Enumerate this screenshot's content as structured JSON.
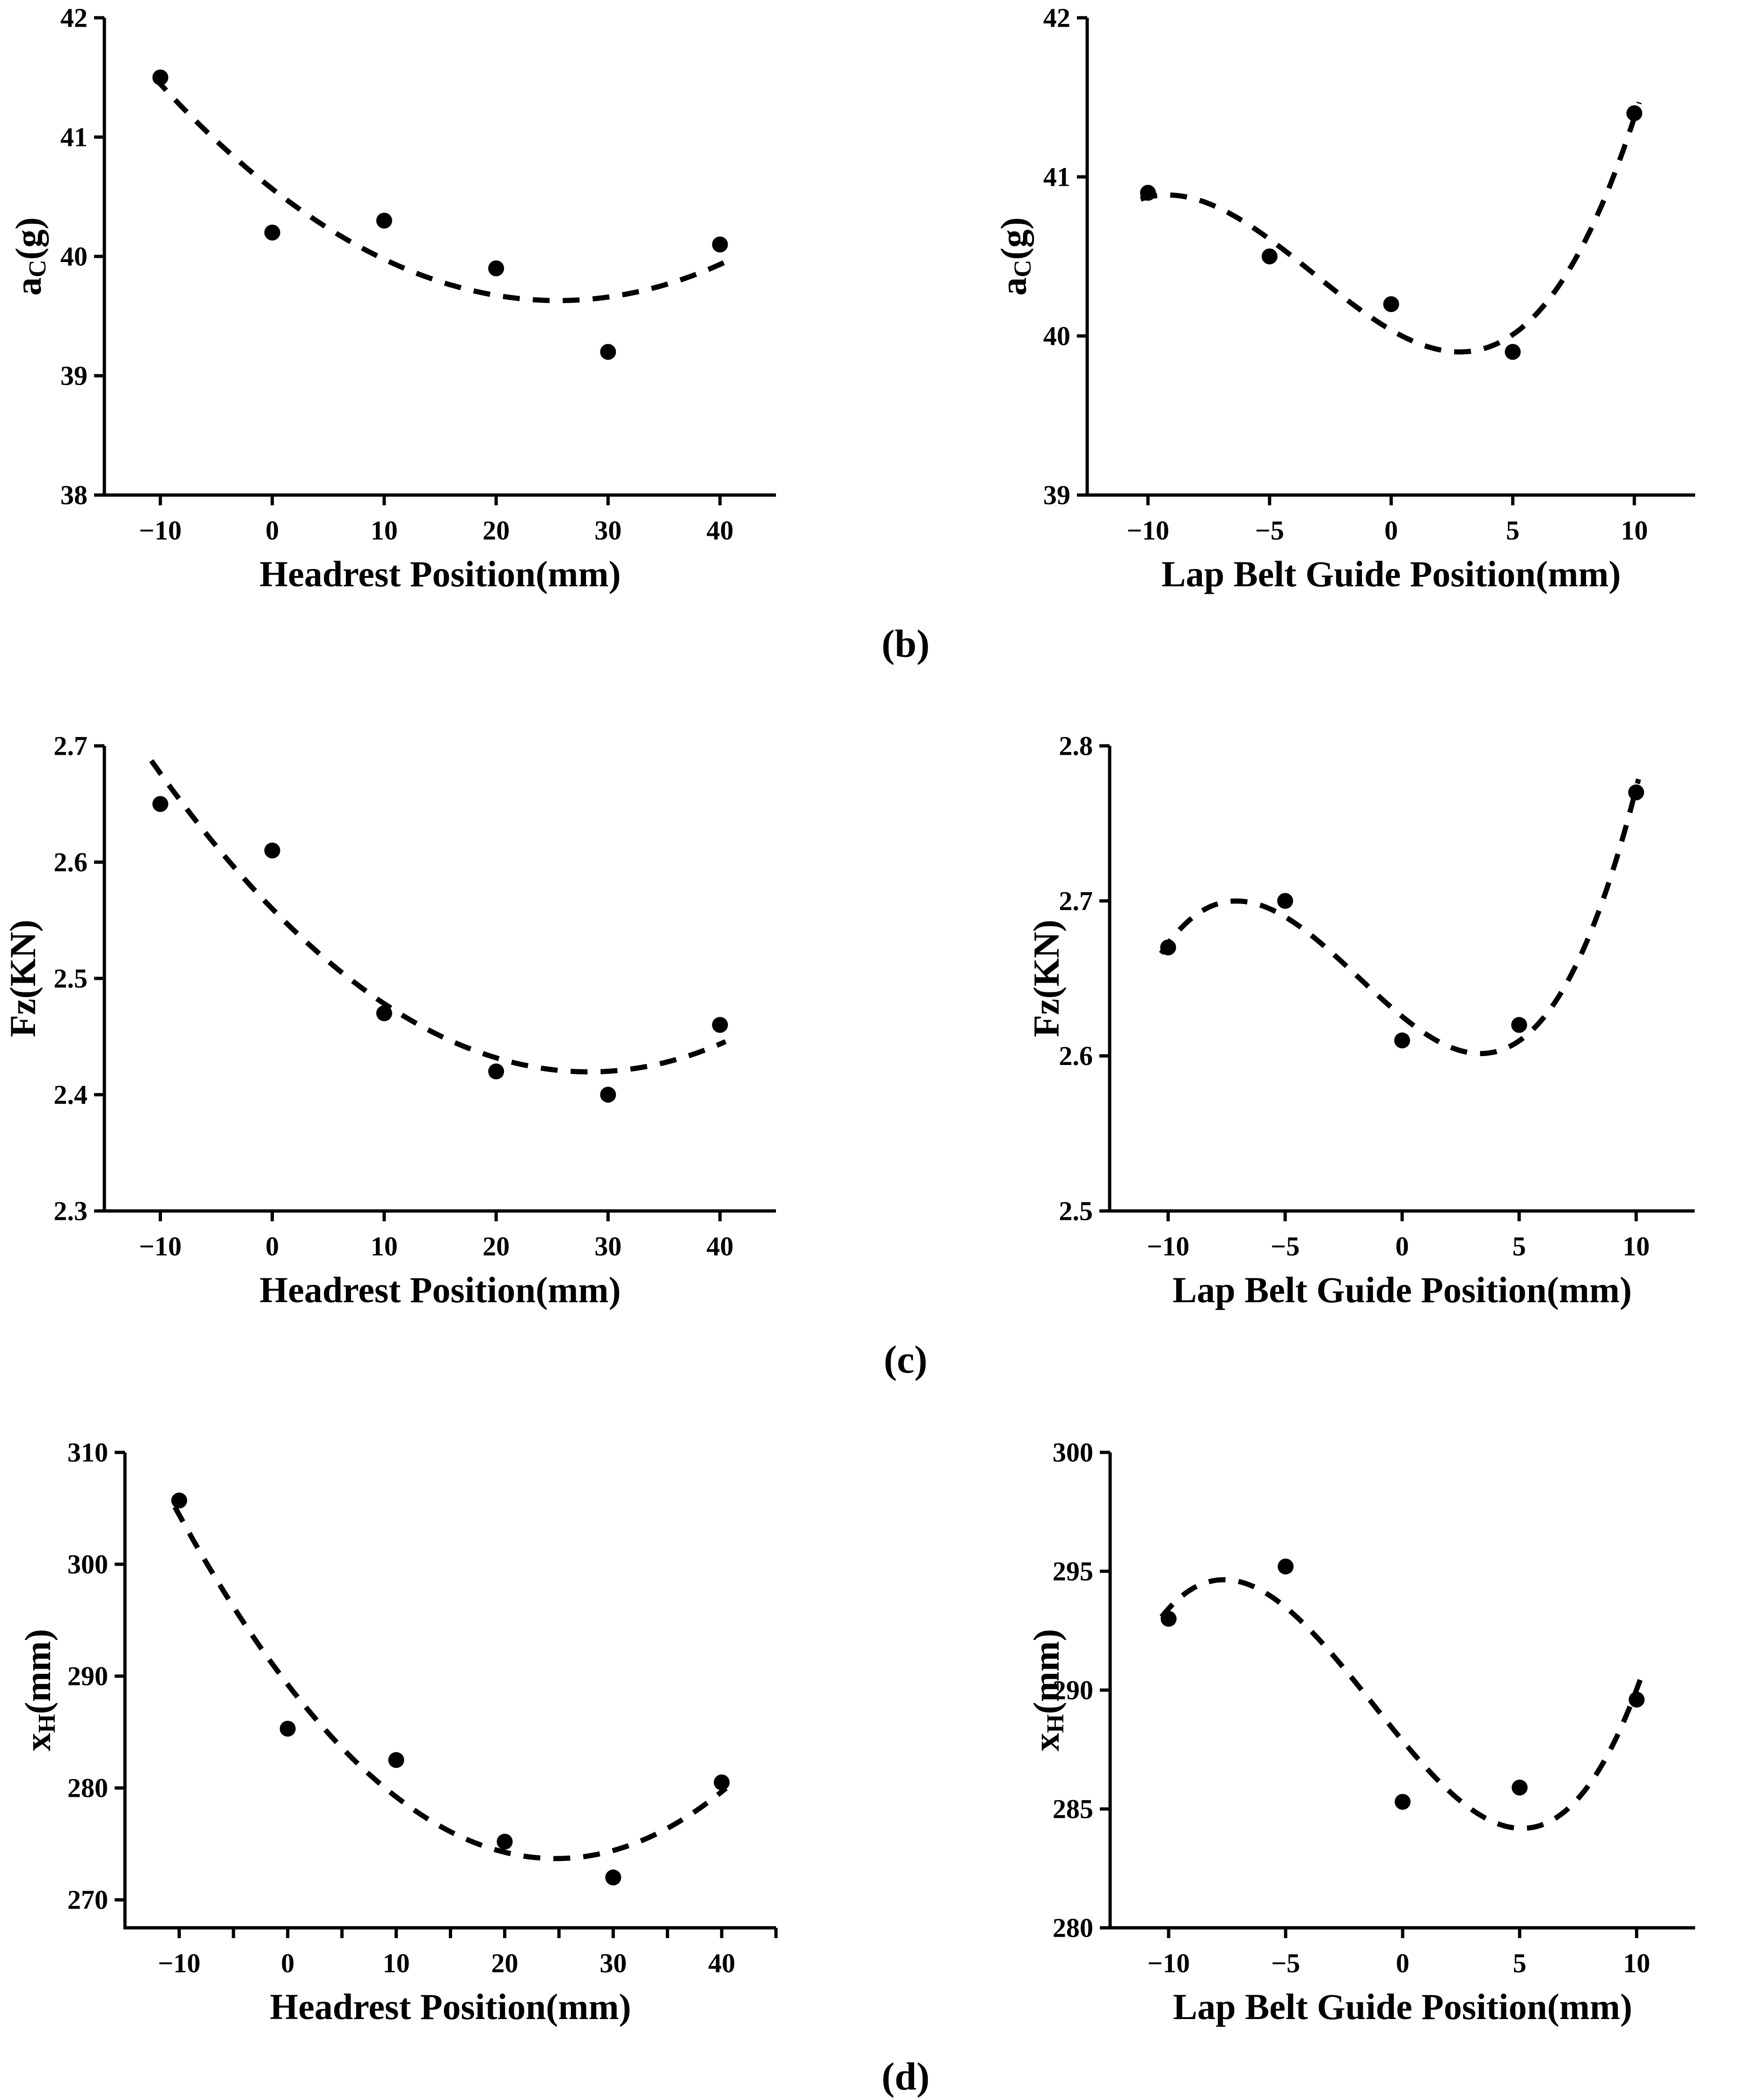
{
  "figure": {
    "background_color": "#ffffff",
    "ink_color": "#000000",
    "panel_labels": [
      "(b)",
      "(c)",
      "(d)"
    ]
  },
  "chart_data": [
    {
      "id": "ac-headrest",
      "panel": "b",
      "type": "scatter",
      "marker": "filled-circle",
      "fit_line_style": "dashed",
      "grid": false,
      "legend": "none",
      "xlabel": "Headrest Position(mm)",
      "ylabel": {
        "pre": "a",
        "sub": "C",
        "post": "(g)"
      },
      "xlim": [
        -15,
        45
      ],
      "ylim": [
        38,
        42
      ],
      "x_ticks": [
        -10,
        0,
        10,
        20,
        30,
        40
      ],
      "x_minor_ticks": [],
      "y_ticks": [
        "38",
        "39",
        "40",
        "41",
        "42"
      ],
      "x": [
        -10,
        0,
        10,
        20,
        30,
        40
      ],
      "y": [
        41.5,
        40.2,
        40.3,
        39.9,
        39.2,
        40.1
      ],
      "fit": {
        "type": "polynomial",
        "coeffs": [
          40.56636,
          -0.07344,
          0.00144
        ],
        "x_range": [
          -10.5,
          40.5
        ]
      }
    },
    {
      "id": "ac-lapbelt",
      "panel": "b",
      "type": "scatter",
      "marker": "filled-circle",
      "fit_line_style": "dashed",
      "grid": false,
      "legend": "none",
      "xlabel": "Lap Belt Guide Position(mm)",
      "ylabel": {
        "pre": "a",
        "sub": "C",
        "post": "(g)"
      },
      "xlim": [
        -12.5,
        12.5
      ],
      "ylim": [
        39,
        42
      ],
      "x_ticks": [
        -10,
        -5,
        0,
        5,
        10
      ],
      "x_minor_ticks": [],
      "y_ticks": [
        "39",
        "40",
        "41",
        "42"
      ],
      "x": [
        -10,
        -5,
        0,
        5,
        10
      ],
      "y": [
        40.9,
        40.5,
        40.2,
        39.9,
        41.4
      ],
      "fit": {
        "type": "polynomial",
        "coeffs": [
          40.037,
          -0.088333,
          0.010857,
          0.0011333
        ],
        "x_range": [
          -10.3,
          10.2
        ]
      }
    },
    {
      "id": "fz-headrest",
      "panel": "c",
      "type": "scatter",
      "marker": "filled-circle",
      "fit_line_style": "dashed",
      "grid": false,
      "legend": "none",
      "xlabel": "Headrest Position(mm)",
      "ylabel": {
        "pre": "Fz(KN)",
        "sub": "",
        "post": ""
      },
      "xlim": [
        -15,
        45
      ],
      "ylim": [
        2.3,
        2.7
      ],
      "x_ticks": [
        -10,
        0,
        10,
        20,
        30,
        40
      ],
      "x_minor_ticks": [],
      "y_ticks": [
        "2.3",
        "2.4",
        "2.5",
        "2.6",
        "2.7"
      ],
      "x": [
        -10,
        0,
        10,
        20,
        30,
        40
      ],
      "y": [
        2.65,
        2.61,
        2.47,
        2.42,
        2.4,
        2.46
      ],
      "fit": {
        "type": "polynomial",
        "coeffs": [
          2.55985,
          -0.0099071,
          0.000175
        ],
        "x_range": [
          -10.8,
          40.5
        ]
      }
    },
    {
      "id": "fz-lapbelt",
      "panel": "c",
      "type": "scatter",
      "marker": "filled-circle",
      "fit_line_style": "dashed",
      "grid": false,
      "legend": "none",
      "xlabel": "Lap Belt Guide Position(mm)",
      "ylabel": {
        "pre": "Fz(KN)",
        "sub": "",
        "post": ""
      },
      "xlim": [
        -12.5,
        12.5
      ],
      "ylim": [
        2.5,
        2.8
      ],
      "x_ticks": [
        -10,
        -5,
        0,
        5,
        10
      ],
      "x_minor_ticks": [],
      "y_ticks": [
        "2.5",
        "2.6",
        "2.7",
        "2.8"
      ],
      "x": [
        -10,
        -5,
        0,
        5,
        10
      ],
      "y": [
        2.67,
        2.7,
        2.61,
        2.62,
        2.77
      ],
      "fit": {
        "type": "polynomial",
        "coeffs": [
          2.62543,
          -0.012333,
          0.00097143,
          0.00017333
        ],
        "x_range": [
          -10.3,
          10.1
        ]
      }
    },
    {
      "id": "xh-headrest",
      "panel": "d",
      "type": "scatter",
      "marker": "filled-circle",
      "fit_line_style": "dashed",
      "grid": false,
      "legend": "none",
      "xlabel": "Headrest Position(mm)",
      "ylabel": {
        "pre": "x",
        "sub": "H",
        "post": "(mm)"
      },
      "xlim": [
        -15,
        45
      ],
      "ylim": [
        267.5,
        310
      ],
      "x_ticks": [
        -10,
        0,
        10,
        20,
        30,
        40
      ],
      "x_minor_ticks": [
        -5,
        5,
        15,
        25,
        35,
        45
      ],
      "y_ticks": [
        "270",
        "280",
        "290",
        "300",
        "310"
      ],
      "x": [
        -10,
        0,
        10,
        20,
        30,
        40
      ],
      "y": [
        305.7,
        285.3,
        282.5,
        275.2,
        272.0,
        280.5
      ],
      "fit": {
        "type": "polynomial",
        "coeffs": [
          289.254,
          -1.2604,
          0.025518
        ],
        "x_range": [
          -10.4,
          40.4
        ]
      }
    },
    {
      "id": "xh-lapbelt",
      "panel": "d",
      "type": "scatter",
      "marker": "filled-circle",
      "fit_line_style": "dashed",
      "grid": false,
      "legend": "none",
      "xlabel": "Lap Belt Guide Position(mm)",
      "ylabel": {
        "pre": "x",
        "sub": "H",
        "post": "(mm)"
      },
      "xlim": [
        -12.5,
        12.5
      ],
      "ylim": [
        280,
        300
      ],
      "x_ticks": [
        -10,
        -5,
        0,
        5,
        10
      ],
      "x_minor_ticks": [],
      "y_ticks": [
        "280",
        "285",
        "290",
        "295",
        "300"
      ],
      "x": [
        -10,
        -5,
        0,
        5,
        10
      ],
      "y": [
        293.0,
        295.2,
        285.3,
        285.9,
        289.6
      ],
      "fit": {
        "type": "polynomial",
        "coeffs": [
          287.871,
          -1.18333,
          0.038571,
          0.010133
        ],
        "x_range": [
          -10.3,
          10.15
        ]
      }
    }
  ]
}
